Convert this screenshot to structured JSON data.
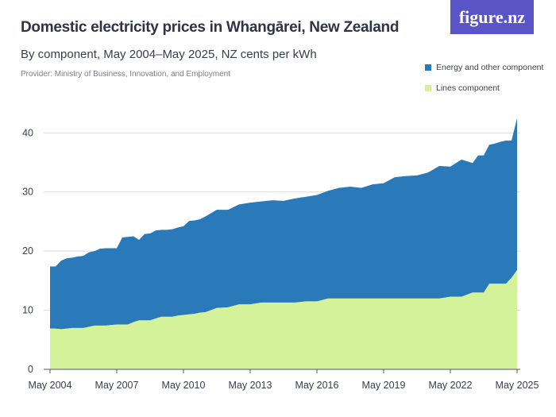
{
  "header": {
    "title": "Domestic electricity prices in Whangārei, New Zealand",
    "subtitle": "By component, May 2004–May 2025, NZ cents per kWh",
    "provider": "Provider: Ministry of Business, Innovation, and Employment",
    "logo": "figure.nz"
  },
  "colors": {
    "energy": "#2a7ab9",
    "lines": "#d4f29a",
    "grid": "#d9d9d9",
    "logo_bg": "#5a55c6"
  },
  "chart_data": {
    "type": "area",
    "stacked": true,
    "title": "Domestic electricity prices in Whangārei, New Zealand",
    "subtitle": "By component, May 2004–May 2025, NZ cents per kWh",
    "x": [
      2004,
      2004.25,
      2004.5,
      2004.75,
      2005,
      2005.25,
      2005.5,
      2005.75,
      2006,
      2006.25,
      2006.5,
      2006.75,
      2007,
      2007.25,
      2007.5,
      2007.75,
      2008,
      2008.25,
      2008.5,
      2008.75,
      2009,
      2009.25,
      2009.5,
      2009.75,
      2010,
      2010.25,
      2010.5,
      2010.75,
      2011,
      2011.5,
      2012,
      2012.5,
      2013,
      2013.5,
      2014,
      2014.5,
      2015,
      2015.5,
      2016,
      2016.5,
      2017,
      2017.5,
      2018,
      2018.5,
      2019,
      2019.5,
      2020,
      2020.5,
      2021,
      2021.5,
      2022,
      2022.5,
      2023,
      2023.25,
      2023.5,
      2023.75,
      2024,
      2024.25,
      2024.5,
      2024.75,
      2025
    ],
    "xticks": [
      "May 2004",
      "May 2007",
      "May 2010",
      "May 2013",
      "May 2016",
      "May 2019",
      "May 2022",
      "May 2025"
    ],
    "xtick_values": [
      2004,
      2007,
      2010,
      2013,
      2016,
      2019,
      2022,
      2025
    ],
    "ylim": [
      0,
      43
    ],
    "yticks": [
      0,
      10,
      20,
      30,
      40
    ],
    "grid": true,
    "legend_position": "top-right",
    "series": [
      {
        "name": "Lines component",
        "values": [
          6.9,
          6.9,
          6.8,
          6.9,
          7.0,
          7.0,
          7.0,
          7.2,
          7.4,
          7.4,
          7.4,
          7.5,
          7.6,
          7.6,
          7.6,
          8.0,
          8.3,
          8.3,
          8.3,
          8.6,
          8.9,
          8.9,
          8.9,
          9.1,
          9.2,
          9.3,
          9.4,
          9.6,
          9.7,
          10.4,
          10.5,
          11.0,
          11.0,
          11.3,
          11.3,
          11.3,
          11.3,
          11.5,
          11.5,
          12.0,
          12.0,
          12.0,
          12.0,
          12.0,
          12.0,
          12.0,
          12.0,
          12.0,
          12.0,
          12.0,
          12.3,
          12.3,
          13.0,
          13.0,
          13.0,
          14.5,
          14.5,
          14.5,
          14.5,
          15.5,
          16.8
        ]
      },
      {
        "name": "Energy and other component",
        "values": [
          10.5,
          10.5,
          11.6,
          11.9,
          11.9,
          12.1,
          12.2,
          12.6,
          12.6,
          13.0,
          13.1,
          13.0,
          12.9,
          14.7,
          14.8,
          14.5,
          13.6,
          14.6,
          14.7,
          14.9,
          14.7,
          14.7,
          14.8,
          14.9,
          15.0,
          15.8,
          15.8,
          15.8,
          16.2,
          16.6,
          16.5,
          16.9,
          17.2,
          17.1,
          17.3,
          17.2,
          17.6,
          17.7,
          18.0,
          18.2,
          18.7,
          18.9,
          18.7,
          19.3,
          19.5,
          20.5,
          20.7,
          20.8,
          21.3,
          22.4,
          22.0,
          23.2,
          21.9,
          23.2,
          23.2,
          23.5,
          23.7,
          24.0,
          24.2,
          23.2,
          25.7
        ]
      }
    ]
  }
}
